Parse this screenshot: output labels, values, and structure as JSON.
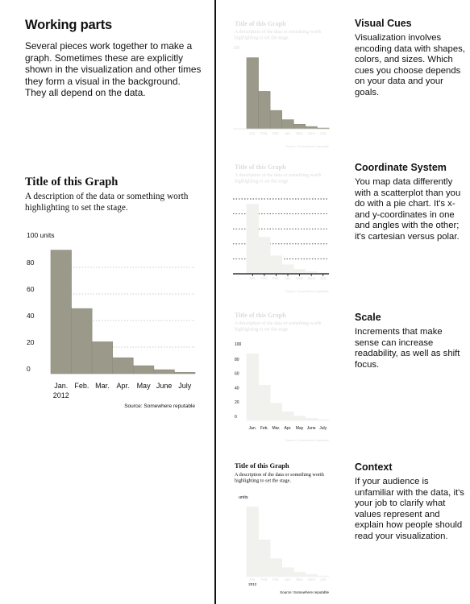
{
  "intro": {
    "title": "Working parts",
    "body": "Several pieces work together to make a graph. Sometimes these are explicitly shown in the visualization and other times they form a visual in the background. They all depend on the data."
  },
  "graph": {
    "title": "Title of this Graph",
    "description": "A description of the data or something worth highlighting to set the stage.",
    "source": "Source: Somewhere reputable",
    "unit_top": "100 units",
    "unit_short": "units",
    "year": "2012"
  },
  "chart_data": {
    "type": "bar",
    "title": "Title of this Graph",
    "categories": [
      "Jan.",
      "Feb.",
      "Mar.",
      "Apr.",
      "May",
      "June",
      "July"
    ],
    "values": [
      93,
      49,
      24,
      12,
      6,
      3,
      1
    ],
    "ylim": [
      0,
      100
    ],
    "yticks": [
      0,
      20,
      40,
      60,
      80,
      100
    ],
    "ytick_labels": [
      "0",
      "20",
      "40",
      "60",
      "80",
      "100 units"
    ],
    "xlabel": "2012",
    "ylabel": "units",
    "grid": true
  },
  "sections": [
    {
      "heading": "Visual Cues",
      "body": "Visualization involves encoding data with shapes, colors, and sizes. Which cues you choose depends on your data and your goals."
    },
    {
      "heading": "Coordinate System",
      "body": "You map data differently with a scatterplot than you do with a pie chart. It's x- and y-coordinates in one and angles with the other; it's cartesian versus polar."
    },
    {
      "heading": "Scale",
      "body": "Increments that make sense can increase readability, as well as shift focus."
    },
    {
      "heading": "Context",
      "body": "If your audience is unfamiliar with the data, it's your job to clarify what values represent and explain how people should read your visualization."
    }
  ],
  "colors": {
    "bar": "#9b9a8a",
    "faded_bar": "#f1f1ee",
    "faded_text": "#dcdcdc",
    "grid": "#bbbbbb",
    "axis": "#111111"
  }
}
